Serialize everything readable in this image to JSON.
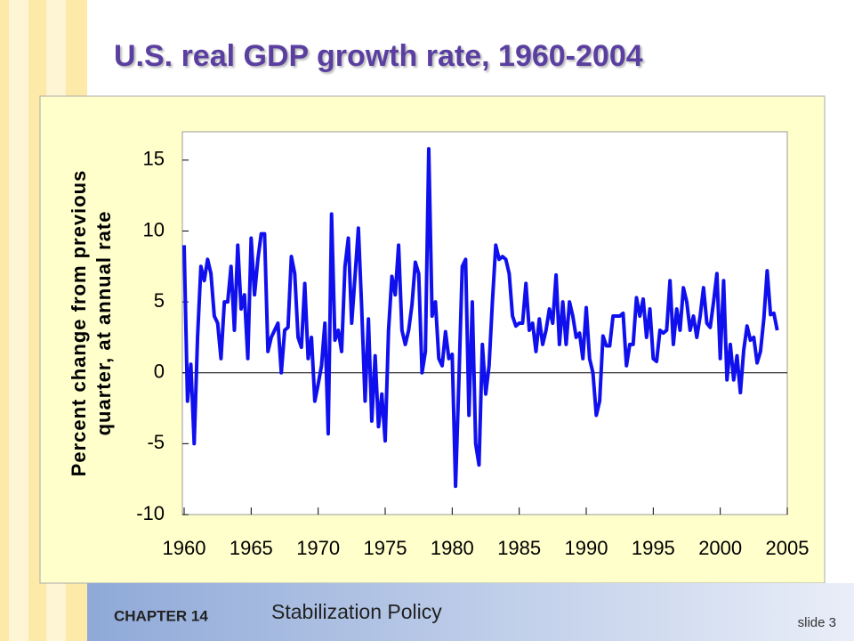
{
  "slide": {
    "chapter": "CHAPTER 14",
    "chapter_title": "Stabilization Policy",
    "slide_number": "slide 3"
  },
  "chart_data": {
    "type": "line",
    "title": "U.S. real GDP growth rate, 1960-2004",
    "ylabel": [
      "Percent change from previous",
      "quarter, at annual rate"
    ],
    "color": "#1010ee",
    "xlim": [
      1960,
      2005
    ],
    "xticks": [
      1960,
      1965,
      1970,
      1975,
      1980,
      1985,
      1990,
      1995,
      2000,
      2005
    ],
    "ylim": [
      -10,
      17
    ],
    "yticks": [
      -10,
      -5,
      0,
      5,
      10,
      15
    ],
    "x": [
      1960,
      1960.25,
      1960.5,
      1960.75,
      1961,
      1961.25,
      1961.5,
      1961.75,
      1962,
      1962.25,
      1962.5,
      1962.75,
      1963,
      1963.25,
      1963.5,
      1963.75,
      1964,
      1964.25,
      1964.5,
      1964.75,
      1965,
      1965.25,
      1965.5,
      1965.75,
      1966,
      1966.25,
      1966.5,
      1966.75,
      1967,
      1967.25,
      1967.5,
      1967.75,
      1968,
      1968.25,
      1968.5,
      1968.75,
      1969,
      1969.25,
      1969.5,
      1969.75,
      1970,
      1970.25,
      1970.5,
      1970.75,
      1971,
      1971.25,
      1971.5,
      1971.75,
      1972,
      1972.25,
      1972.5,
      1972.75,
      1973,
      1973.25,
      1973.5,
      1973.75,
      1974,
      1974.25,
      1974.5,
      1974.75,
      1975,
      1975.25,
      1975.5,
      1975.75,
      1976,
      1976.25,
      1976.5,
      1976.75,
      1977,
      1977.25,
      1977.5,
      1977.75,
      1978,
      1978.25,
      1978.5,
      1978.75,
      1979,
      1979.25,
      1979.5,
      1979.75,
      1980,
      1980.25,
      1980.5,
      1980.75,
      1981,
      1981.25,
      1981.5,
      1981.75,
      1982,
      1982.25,
      1982.5,
      1982.75,
      1983,
      1983.25,
      1983.5,
      1983.75,
      1984,
      1984.25,
      1984.5,
      1984.75,
      1985,
      1985.25,
      1985.5,
      1985.75,
      1986,
      1986.25,
      1986.5,
      1986.75,
      1987,
      1987.25,
      1987.5,
      1987.75,
      1988,
      1988.25,
      1988.5,
      1988.75,
      1989,
      1989.25,
      1989.5,
      1989.75,
      1990,
      1990.25,
      1990.5,
      1990.75,
      1991,
      1991.25,
      1991.5,
      1991.75,
      1992,
      1992.25,
      1992.5,
      1992.75,
      1993,
      1993.25,
      1993.5,
      1993.75,
      1994,
      1994.25,
      1994.5,
      1994.75,
      1995,
      1995.25,
      1995.5,
      1995.75,
      1996,
      1996.25,
      1996.5,
      1996.75,
      1997,
      1997.25,
      1997.5,
      1997.75,
      1998,
      1998.25,
      1998.5,
      1998.75,
      1999,
      1999.25,
      1999.5,
      1999.75,
      2000,
      2000.25,
      2000.5,
      2000.75,
      2001,
      2001.25,
      2001.5,
      2001.75,
      2002,
      2002.25,
      2002.5,
      2002.75,
      2003,
      2003.25,
      2003.5,
      2003.75,
      2004,
      2004.25
    ],
    "values": [
      9.0,
      -2.0,
      0.6,
      -5.0,
      2.5,
      7.5,
      6.5,
      8.0,
      7.0,
      4.0,
      3.5,
      1.0,
      5.0,
      5.0,
      7.5,
      3.0,
      9.0,
      4.5,
      5.5,
      1.0,
      9.5,
      5.5,
      8.0,
      9.8,
      9.8,
      1.5,
      2.5,
      3.0,
      3.5,
      0.0,
      3.0,
      3.2,
      8.2,
      7.0,
      2.5,
      1.8,
      6.3,
      1.0,
      2.5,
      -2.0,
      -0.8,
      0.5,
      3.5,
      -4.3,
      11.2,
      2.3,
      3.0,
      1.5,
      7.5,
      9.5,
      3.5,
      6.8,
      10.2,
      4.5,
      -2.0,
      3.8,
      -3.4,
      1.2,
      -3.8,
      -1.5,
      -4.8,
      3.0,
      6.8,
      5.5,
      9.0,
      3.0,
      2.0,
      3.0,
      4.8,
      7.8,
      7.0,
      0.0,
      1.5,
      15.8,
      4.0,
      5.0,
      1.0,
      0.5,
      2.9,
      1.0,
      1.3,
      -8.0,
      -0.5,
      7.5,
      8.0,
      -3.0,
      5.0,
      -5.0,
      -6.5,
      2.0,
      -1.5,
      0.5,
      5.0,
      9.0,
      8.0,
      8.2,
      8.0,
      7.0,
      4.0,
      3.3,
      3.5,
      3.5,
      6.3,
      3.0,
      3.5,
      1.5,
      3.8,
      2.0,
      3.0,
      4.5,
      3.5,
      6.9,
      2.0,
      5.0,
      2.0,
      5.0,
      4.0,
      2.5,
      2.8,
      1.0,
      4.6,
      1.0,
      0.0,
      -3.0,
      -2.0,
      2.6,
      1.9,
      1.9,
      4.0,
      4.0,
      4.0,
      4.2,
      0.5,
      2.0,
      2.0,
      5.3,
      4.0,
      5.2,
      2.5,
      4.5,
      1.0,
      0.8,
      3.0,
      2.8,
      3.0,
      6.5,
      2.0,
      4.5,
      3.0,
      6.0,
      5.0,
      3.0,
      4.0,
      2.5,
      4.0,
      6.0,
      3.5,
      3.2,
      5.0,
      7.0,
      1.0,
      6.5,
      -0.5,
      2.0,
      -0.5,
      1.2,
      -1.4,
      1.6,
      3.3,
      2.3,
      2.5,
      0.7,
      1.5,
      3.8,
      7.2,
      4.1,
      4.2,
      3.0
    ]
  }
}
